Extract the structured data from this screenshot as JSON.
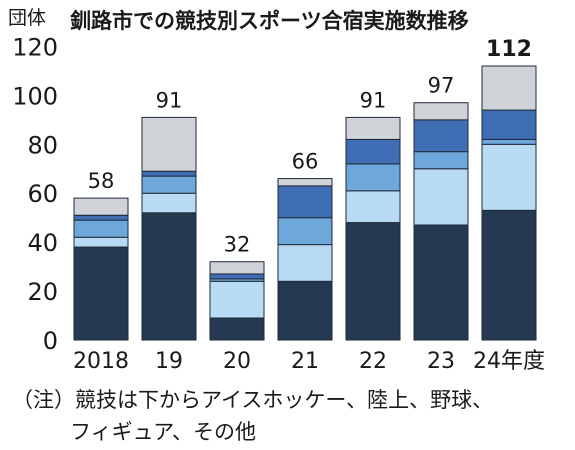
{
  "chart_data": {
    "type": "bar",
    "stacked": true,
    "title": "釧路市での競技別スポーツ合宿実施数推移",
    "unit_label": "団体",
    "categories": [
      "2018",
      "19",
      "20",
      "21",
      "22",
      "23",
      "24年度"
    ],
    "totals": [
      58,
      91,
      32,
      66,
      91,
      97,
      112
    ],
    "total_labels": [
      "58",
      "91",
      "32",
      "66",
      "91",
      "97",
      "112"
    ],
    "highlight_total_index": 6,
    "series": [
      {
        "values": [
          38,
          52,
          9,
          24,
          48,
          47,
          53
        ],
        "color": "#253a52"
      },
      {
        "values": [
          4,
          8,
          15,
          15,
          13,
          23,
          27
        ],
        "color": "#b8daf2"
      },
      {
        "values": [
          7,
          7,
          1,
          11,
          11,
          7,
          2
        ],
        "color": "#6ea7d9"
      },
      {
        "values": [
          2,
          2,
          2,
          13,
          10,
          13,
          12
        ],
        "color": "#3f6eb4"
      },
      {
        "values": [
          7,
          22,
          5,
          3,
          9,
          7,
          18
        ],
        "color": "#d0d3d8"
      }
    ],
    "ylim": [
      0,
      130
    ],
    "yticks": [
      0,
      20,
      40,
      60,
      80,
      100,
      120
    ],
    "grid": false,
    "legend": "none"
  },
  "note": {
    "line1": "（注）競技は下からアイスホッケー、陸上、野球、",
    "line2": "フィギュア、その他"
  }
}
